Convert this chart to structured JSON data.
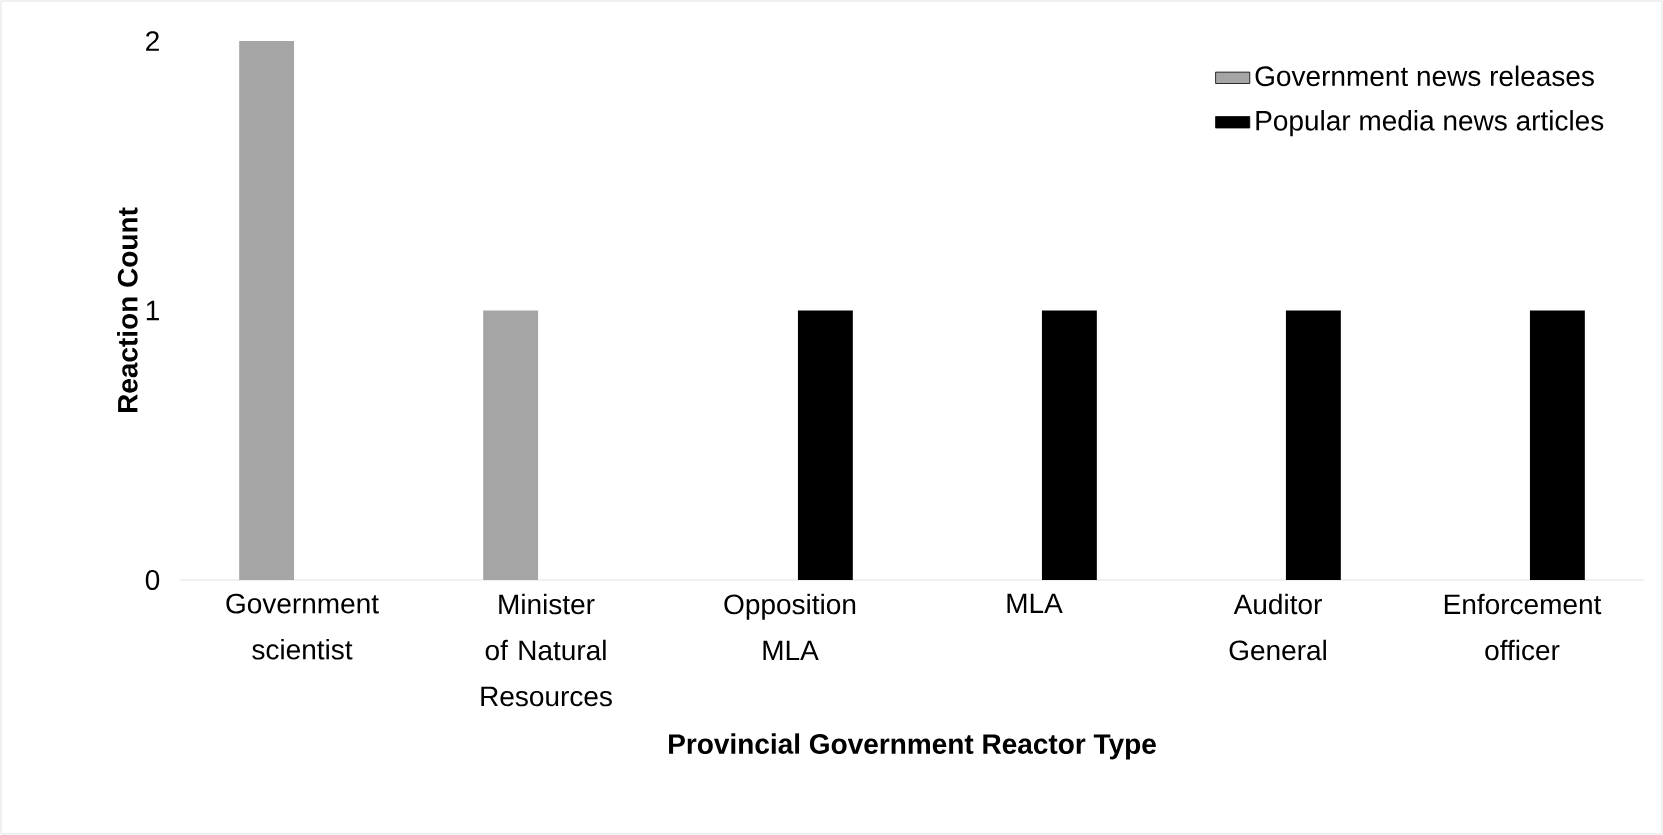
{
  "chart_data": {
    "type": "bar",
    "xlabel": "Provincial Government Reactor Type",
    "ylabel": "Reaction Count",
    "categories": [
      "Government scientist",
      "Minister of Natural Resources",
      "Opposition MLA",
      "MLA",
      "Auditor General",
      "Enforcement officer"
    ],
    "series": [
      {
        "name": "Government news releases",
        "color": "#a5a5a5",
        "values": [
          2,
          1,
          0,
          0,
          0,
          0
        ]
      },
      {
        "name": "Popular media news articles",
        "color": "#000000",
        "values": [
          0,
          0,
          1,
          1,
          1,
          1
        ]
      }
    ],
    "ylim": [
      0,
      2
    ],
    "yticks": [
      0,
      1,
      2
    ],
    "legend": "top right"
  }
}
